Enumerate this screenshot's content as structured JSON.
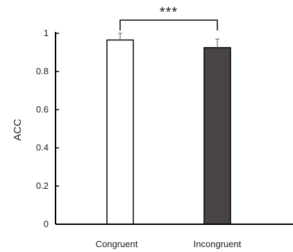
{
  "chart_data": {
    "type": "bar",
    "title": "",
    "xlabel": "",
    "ylabel": "ACC",
    "ylim": [
      0,
      1
    ],
    "yticks": [
      0,
      0.2,
      0.4,
      0.6,
      0.8,
      1
    ],
    "ytick_labels": [
      "0",
      "0.2",
      "0.4",
      "0.6",
      "0.8",
      "1"
    ],
    "categories": [
      "Congruent",
      "Incongruent"
    ],
    "values": [
      0.965,
      0.925
    ],
    "errors": [
      0.035,
      0.045
    ],
    "bar_colors": [
      "#ffffff",
      "#4a4343"
    ],
    "bar_edge_color": "#000000",
    "grid": false,
    "significance": {
      "between": [
        0,
        1
      ],
      "label": "***"
    }
  }
}
